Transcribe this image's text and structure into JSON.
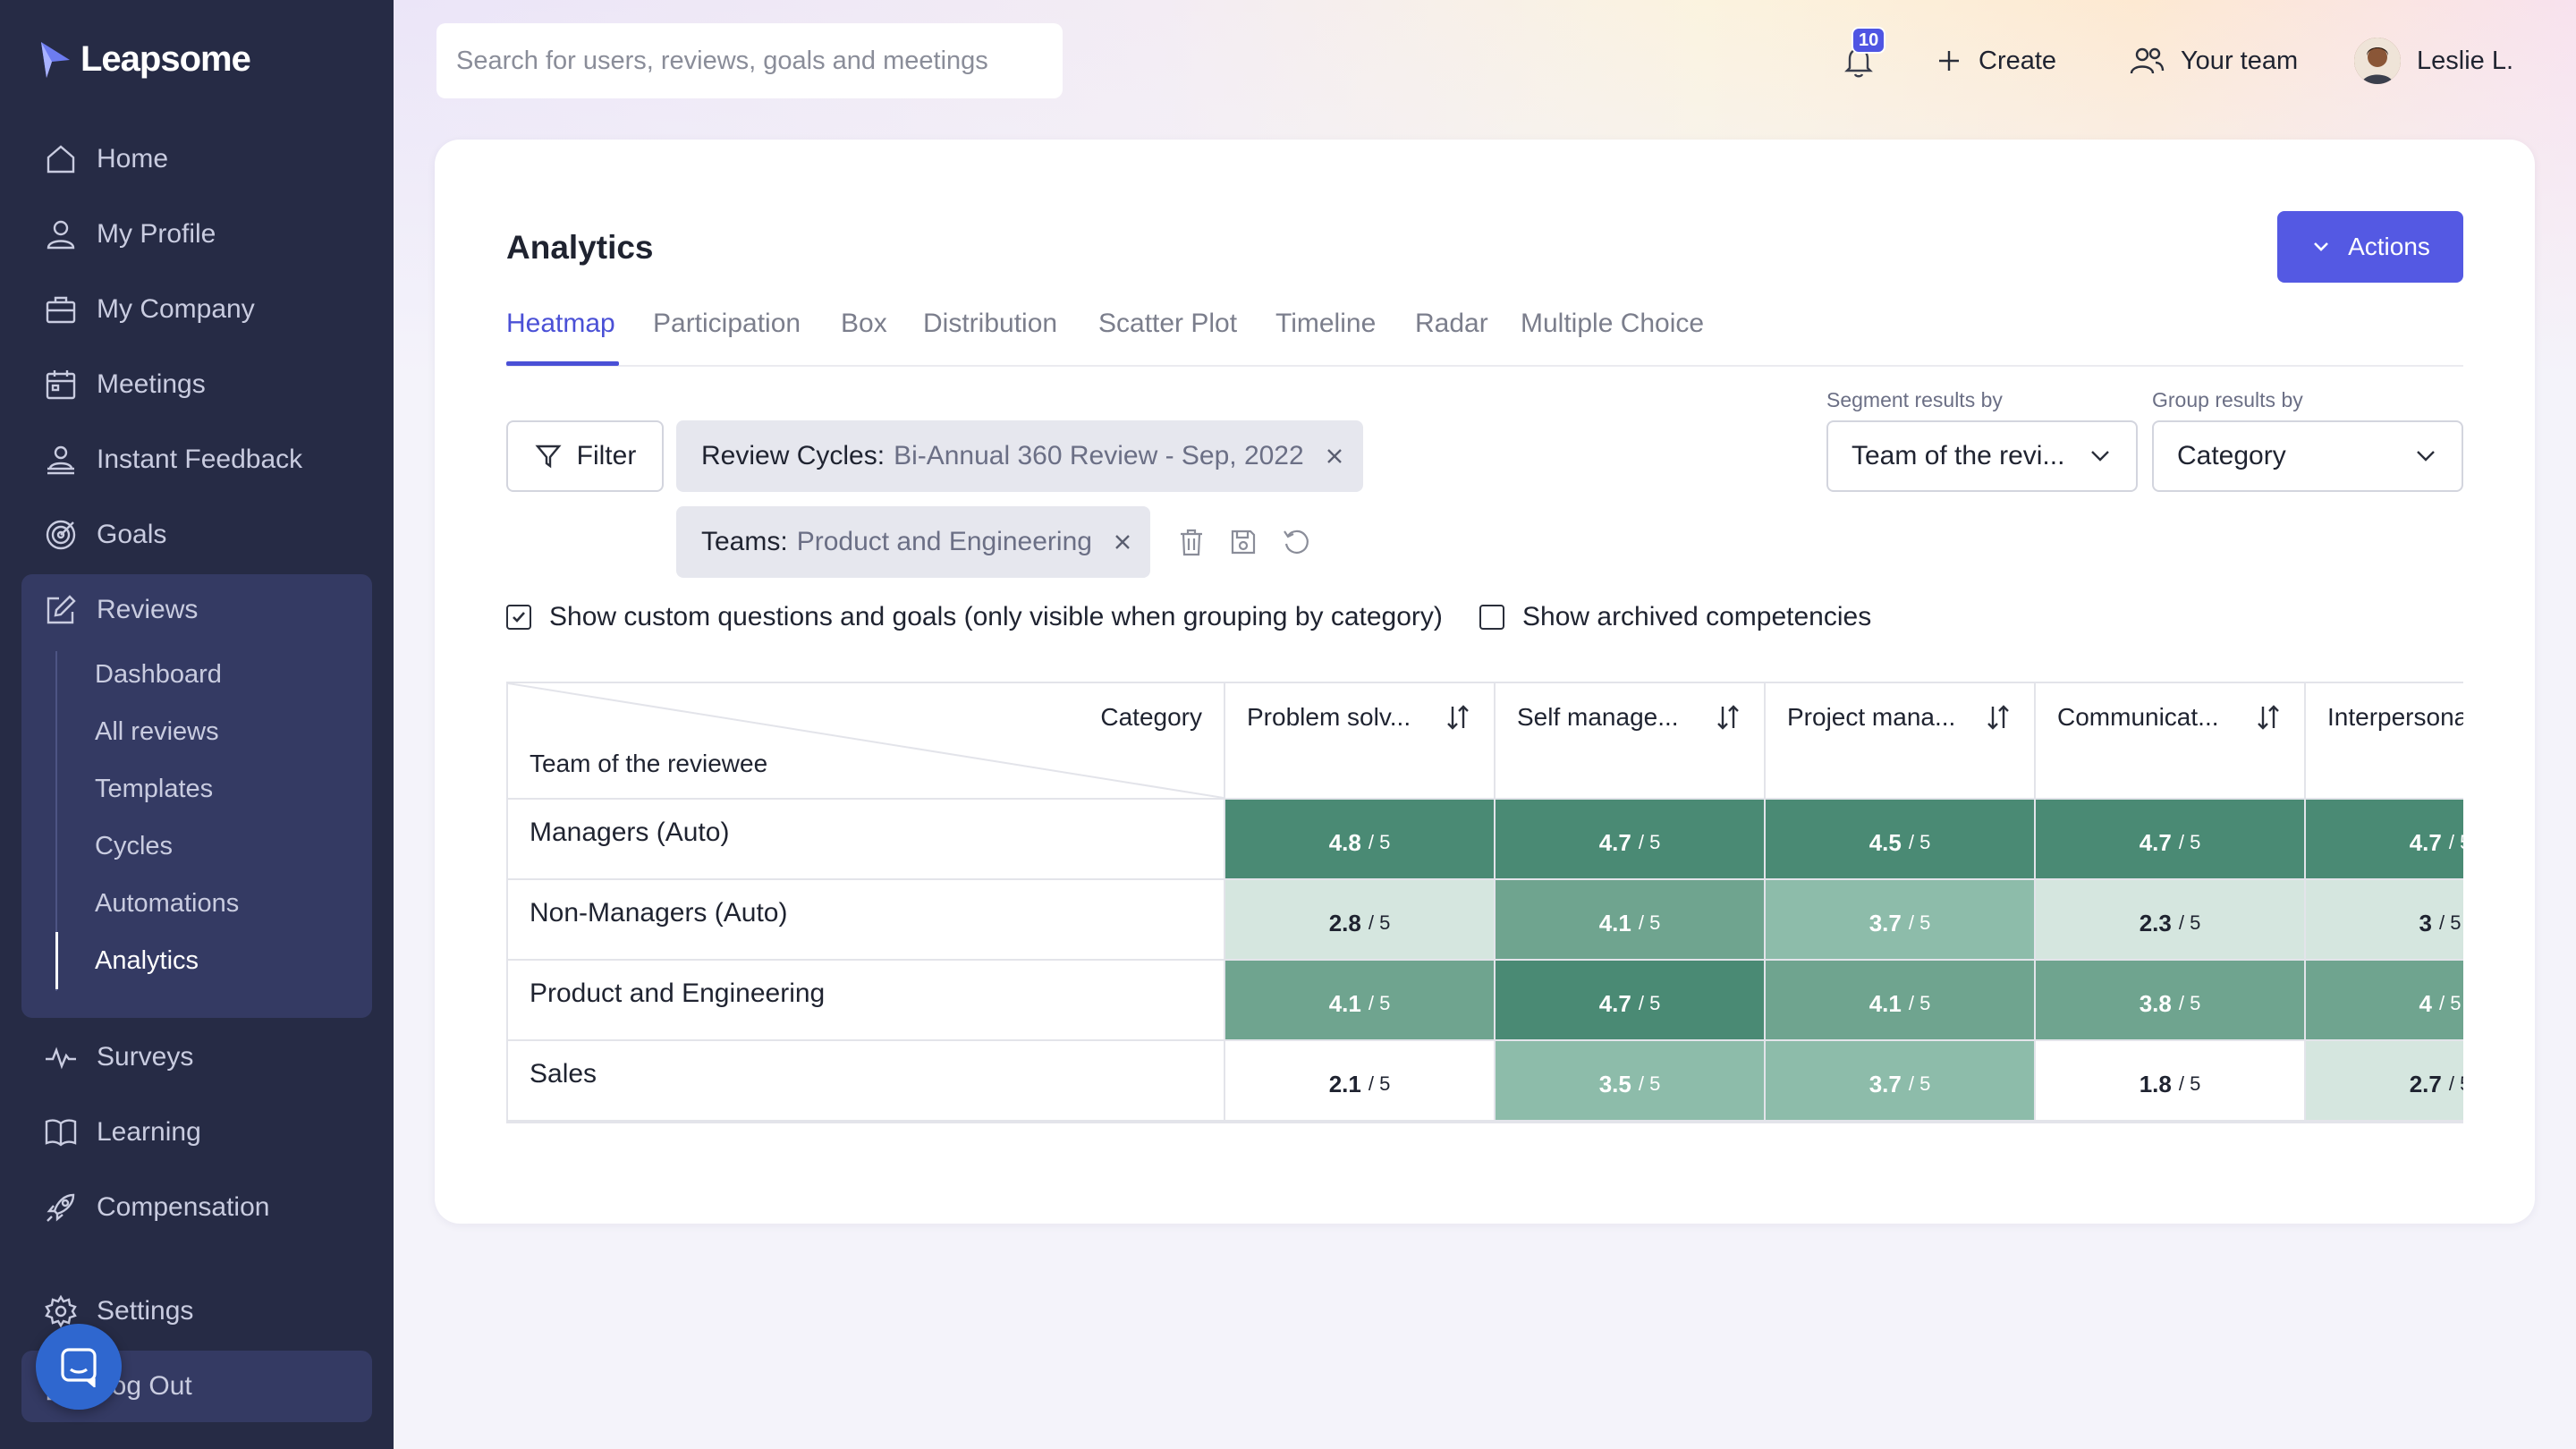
{
  "app": {
    "brand": "Leapsome"
  },
  "sidebar": {
    "items": [
      {
        "label": "Home",
        "icon": "home-icon"
      },
      {
        "label": "My Profile",
        "icon": "user-icon"
      },
      {
        "label": "My Company",
        "icon": "briefcase-icon"
      },
      {
        "label": "Meetings",
        "icon": "calendar-icon"
      },
      {
        "label": "Instant Feedback",
        "icon": "feedback-icon"
      },
      {
        "label": "Goals",
        "icon": "target-icon"
      },
      {
        "label": "Reviews",
        "icon": "edit-icon"
      },
      {
        "label": "Surveys",
        "icon": "pulse-icon"
      },
      {
        "label": "Learning",
        "icon": "book-icon"
      },
      {
        "label": "Compensation",
        "icon": "rocket-icon"
      },
      {
        "label": "Settings",
        "icon": "gear-icon"
      },
      {
        "label": "Log Out",
        "icon": "logout-icon"
      }
    ],
    "reviews_sub": [
      {
        "label": "Dashboard"
      },
      {
        "label": "All reviews"
      },
      {
        "label": "Templates"
      },
      {
        "label": "Cycles"
      },
      {
        "label": "Automations"
      },
      {
        "label": "Analytics",
        "active": true
      }
    ]
  },
  "topbar": {
    "search_placeholder": "Search for users, reviews, goals and meetings",
    "notification_count": "10",
    "create_label": "Create",
    "team_label": "Your team",
    "user_name": "Leslie L."
  },
  "page": {
    "title": "Analytics",
    "actions_label": "Actions",
    "tabs": [
      "Heatmap",
      "Participation",
      "Box",
      "Distribution",
      "Scatter Plot",
      "Timeline",
      "Radar",
      "Multiple Choice"
    ],
    "active_tab": "Heatmap"
  },
  "filters": {
    "filter_label": "Filter",
    "chips": [
      {
        "key": "Review Cycles:",
        "value": "Bi-Annual 360 Review - Sep, 2022"
      },
      {
        "key": "Teams:",
        "value": "Product and Engineering"
      }
    ],
    "segment_label": "Segment results by",
    "segment_value": "Team of the revi...",
    "group_label": "Group results by",
    "group_value": "Category",
    "show_custom_label": "Show custom questions and goals (only visible when grouping by category)",
    "show_custom_checked": true,
    "show_archived_label": "Show archived competencies",
    "show_archived_checked": false
  },
  "heatmap": {
    "corner_col_label": "Category",
    "corner_row_label": "Team of the reviewee",
    "scale_max": 5,
    "columns": [
      "Problem solv...",
      "Self manage...",
      "Project mana...",
      "Communicat...",
      "Interpersonal"
    ],
    "rows": [
      {
        "team": "Managers (Auto)",
        "scores": [
          "4.8",
          "4.7",
          "4.5",
          "4.7",
          "4.7"
        ]
      },
      {
        "team": "Non-Managers (Auto)",
        "scores": [
          "2.8",
          "4.1",
          "3.7",
          "2.3",
          "3"
        ]
      },
      {
        "team": "Product and Engineering",
        "scores": [
          "4.1",
          "4.7",
          "4.1",
          "3.8",
          "4"
        ]
      },
      {
        "team": "Sales",
        "scores": [
          "2.1",
          "3.5",
          "3.7",
          "1.8",
          "2.7"
        ]
      }
    ],
    "colors": {
      "high": "#4a8a74",
      "mid_high": "#6fa48f",
      "mid": "#8dbcaa",
      "low": "#d5e6df",
      "none": "#ffffff"
    }
  }
}
